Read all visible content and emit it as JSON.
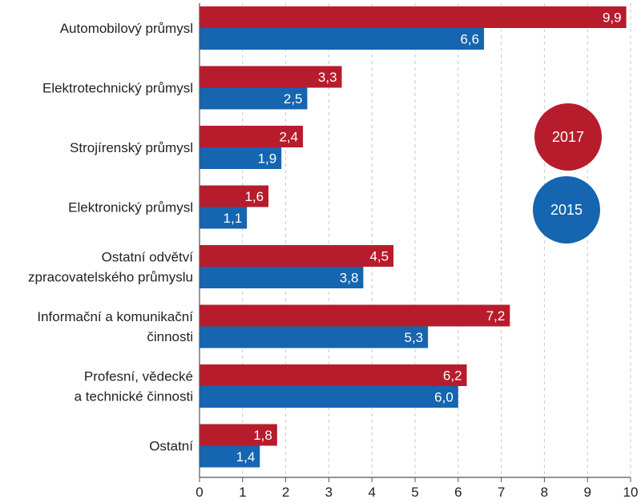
{
  "chart_data": {
    "type": "bar",
    "orientation": "horizontal",
    "categories": [
      [
        "Automobilový průmysl"
      ],
      [
        "Elektrotechnický průmysl"
      ],
      [
        "Strojírenský průmysl"
      ],
      [
        "Elektronický průmysl"
      ],
      [
        "Ostatní odvětví",
        "zpracovatelského průmyslu"
      ],
      [
        "Informační a komunikační",
        "činnosti"
      ],
      [
        "Profesní, vědecké",
        "a technické činnosti"
      ],
      [
        "Ostatní"
      ]
    ],
    "series": [
      {
        "name": "2017",
        "color": "#b71c2c",
        "values": [
          9.9,
          3.3,
          2.4,
          1.6,
          4.5,
          7.2,
          6.2,
          1.8
        ],
        "labels": [
          "9,9",
          "3,3",
          "2,4",
          "1,6",
          "4,5",
          "7,2",
          "6,2",
          "1,8"
        ]
      },
      {
        "name": "2015",
        "color": "#1565b0",
        "values": [
          6.6,
          2.5,
          1.9,
          1.1,
          3.8,
          5.3,
          6.0,
          1.4
        ],
        "labels": [
          "6,6",
          "2,5",
          "1,9",
          "1,1",
          "3,8",
          "5,3",
          "6,0",
          "1,4"
        ]
      }
    ],
    "xlim": [
      0,
      10
    ],
    "xticks": [
      "0",
      "1",
      "2",
      "3",
      "4",
      "5",
      "6",
      "7",
      "8",
      "9",
      "10"
    ],
    "grid": "vertical dashed",
    "legend": "right, circles"
  }
}
